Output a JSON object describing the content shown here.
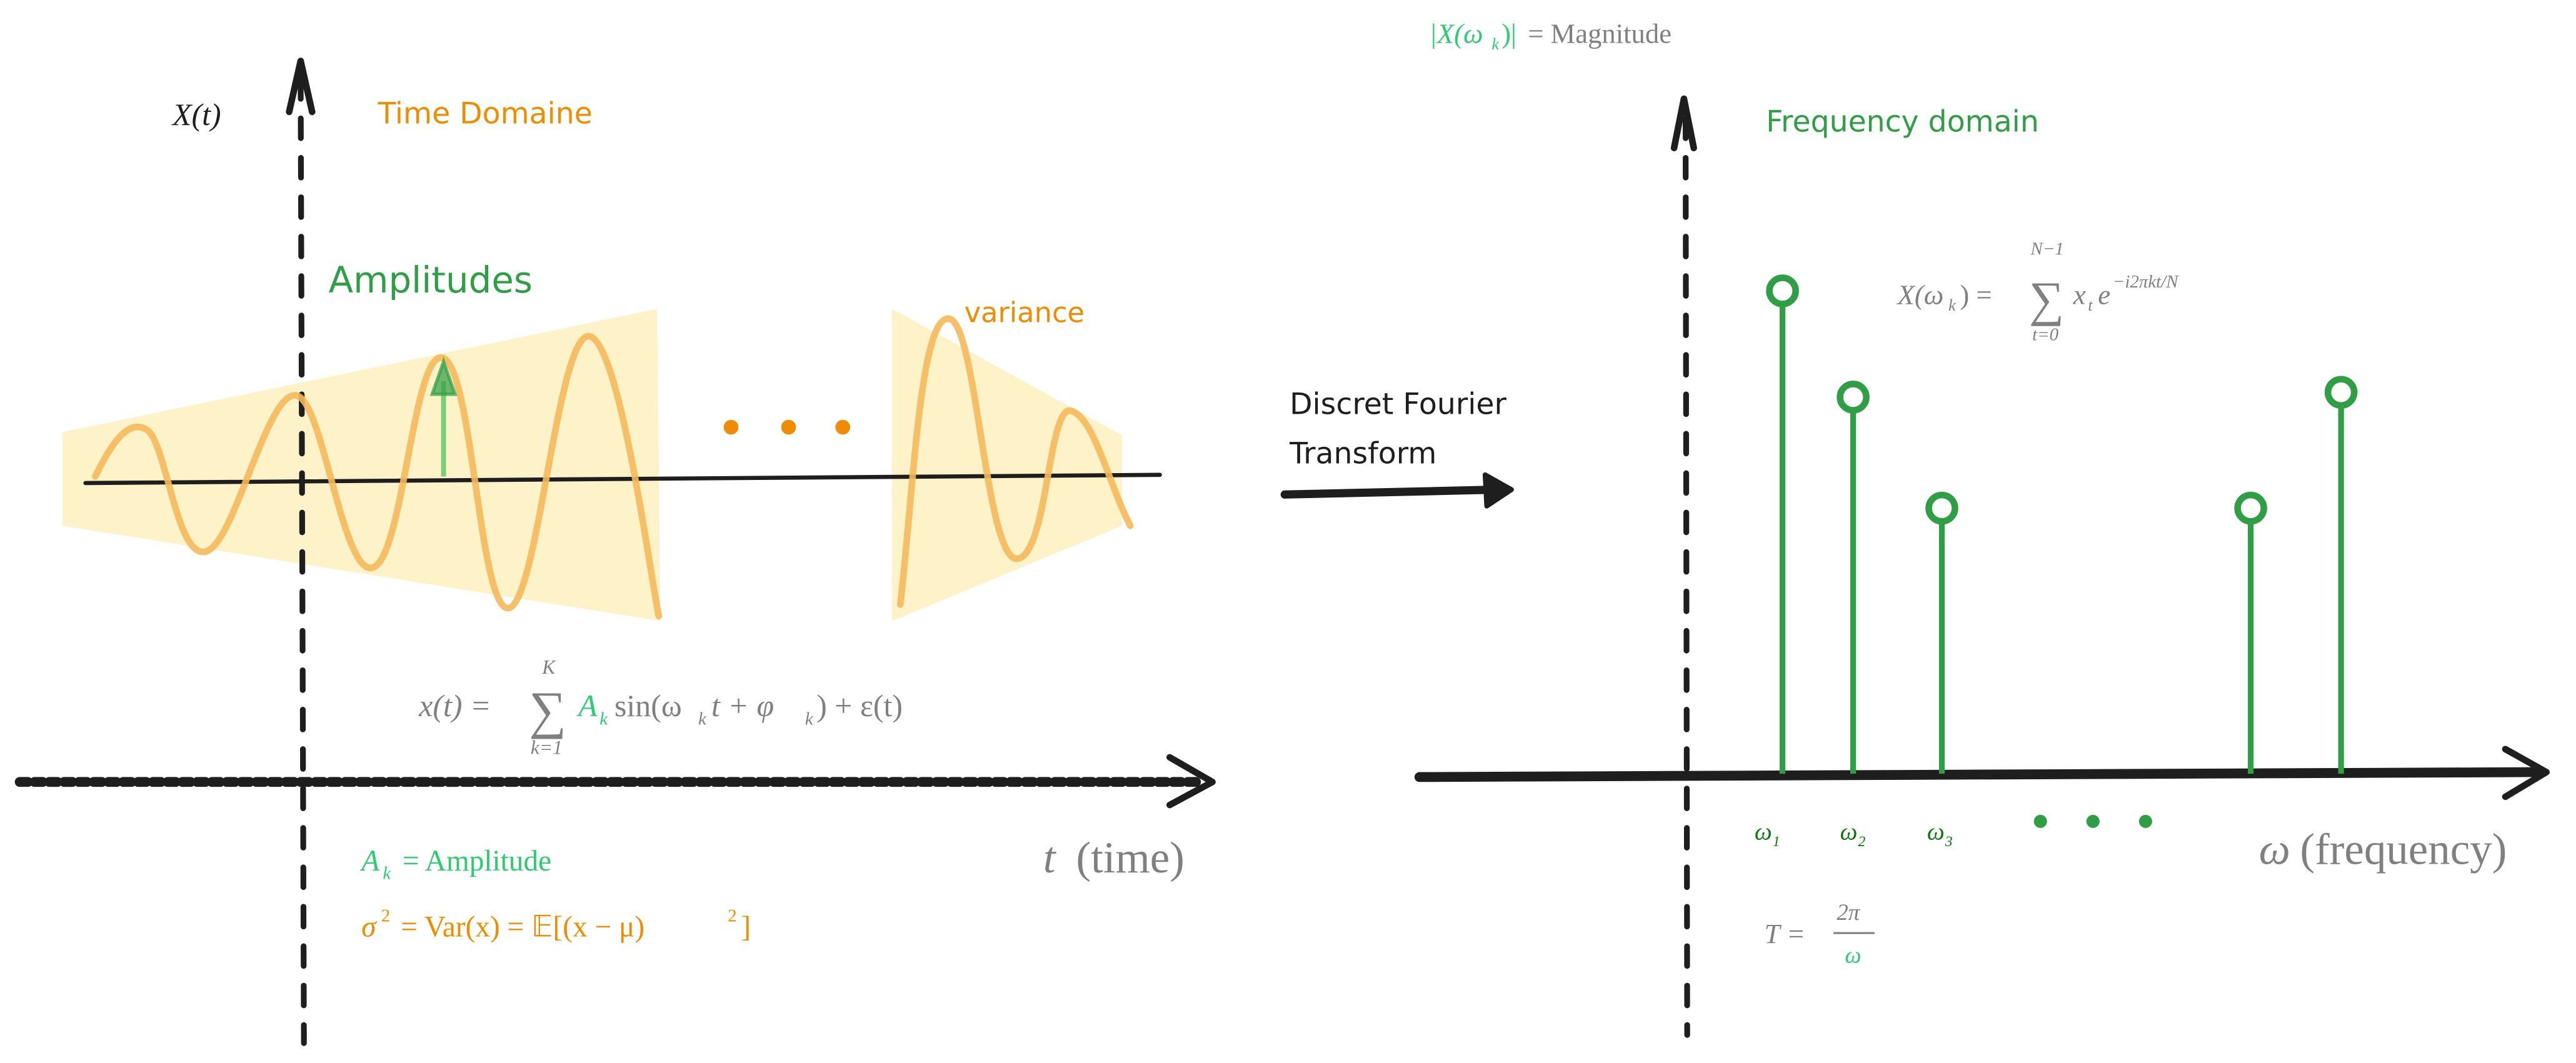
{
  "colors": {
    "axis": "#1e1e1e",
    "wave": "#f5b95a",
    "envelope": "#fdf2c8",
    "orange": "#f08c00",
    "green": "#2f9e44",
    "mathGreen": "#2ecc71",
    "darkGreen": "#0b7a0b",
    "gray": "#808080"
  },
  "time_domain": {
    "y_axis_label": "X(t)",
    "title": "Time Domaine",
    "amplitudes_label": "Amplitudes",
    "variance_label": "variance",
    "x_axis_label_var": "t",
    "x_axis_label_text": "(time)",
    "formula": {
      "lhs": "x(t) =",
      "sum_upper": "K",
      "sum_lower": "k=1",
      "amp": "A",
      "amp_sub": "k",
      "rest": "sin(ω",
      "rest_sub": "k",
      "rest2": "t + φ",
      "rest2_sub": "k",
      "rest3": ") + ε(t)"
    },
    "amplitude_def": {
      "lhs": "A",
      "sub": "k",
      "rhs": "= Amplitude"
    },
    "variance_def": {
      "lhs": "σ",
      "sup": "2",
      "rhs": "= Var(x) = 𝔼[(x − μ)",
      "sup2": "2",
      "end": "]"
    }
  },
  "transform": {
    "line1": "Discret Fourier",
    "line2": "Transform"
  },
  "frequency_domain": {
    "magnitude_def": {
      "lhs": "|X(ω",
      "sub": "k",
      "lhs_end": ")|",
      "rhs": "= Magnitude"
    },
    "title": "Frequency domain",
    "formula": {
      "lhs": "X(ω",
      "lhs_sub": "k",
      "lhs_end": ") =",
      "sum_upper": "N−1",
      "sum_lower": "t=0",
      "term": "x",
      "term_sub": "t",
      "exp_base": "e",
      "exp": "−i2πkt/N"
    },
    "x_axis_label_var": "ω",
    "x_axis_label_text": "(frequency)",
    "tick_labels": [
      {
        "base": "ω",
        "sub": "1"
      },
      {
        "base": "ω",
        "sub": "2"
      },
      {
        "base": "ω",
        "sub": "3"
      }
    ],
    "stems_relative_magnitude": [
      1.0,
      0.78,
      0.55,
      0.55,
      0.79
    ],
    "period_def": {
      "lhs": "T =",
      "num": "2π",
      "den": "ω"
    }
  }
}
